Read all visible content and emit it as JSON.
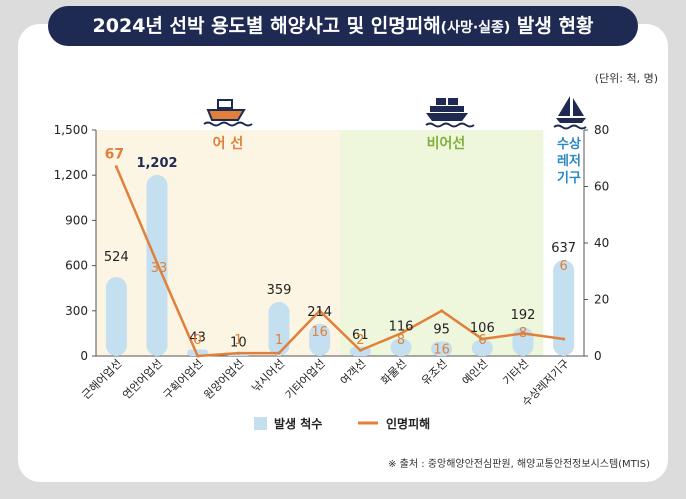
{
  "title": {
    "main_before": "2024년 선박 용도별 해양사고 및 인명피해",
    "main_paren": "(사망·실종)",
    "main_after": " 발생 현황"
  },
  "unit_label": "(단위: 척, 명)",
  "source_label": "※ 출처 : 중앙해양안전심판원, 해양교통안전정보시스템(MTIS)",
  "groups": {
    "fishing": "어 선",
    "nonfishing": "비어선",
    "leisure": [
      "수상",
      "레저",
      "기구"
    ]
  },
  "legend": {
    "bars": "발생 척수",
    "line": "인명피해"
  },
  "colors": {
    "bar": "#c4dff0",
    "line": "#e0803a",
    "title_bg": "#1f2a52",
    "nonfishing_band": "#eef6dc",
    "fishing_band": "#fdf5e3",
    "fishing_text": "#e0803a",
    "nonfishing_text": "#7fb13c",
    "leisure_text": "#2a88c2"
  },
  "icons": {
    "fishing": "fishing-boat-icon",
    "nonfishing": "cargo-ship-icon",
    "leisure": "sailboat-icon"
  },
  "chart_data": {
    "type": "bar",
    "categories": [
      "근해어업선",
      "연안어업선",
      "구획어업선",
      "원양어업선",
      "낚시어선",
      "기타어업선",
      "여객선",
      "화물선",
      "유조선",
      "예인선",
      "기타선",
      "수상레저기구"
    ],
    "series": [
      {
        "name": "발생 척수",
        "type": "bar",
        "axis": "left",
        "values": [
          524,
          1202,
          43,
          10,
          359,
          214,
          61,
          116,
          95,
          106,
          192,
          637
        ]
      },
      {
        "name": "인명피해",
        "type": "line",
        "axis": "right",
        "values": [
          67,
          33,
          0,
          1,
          1,
          16,
          2,
          8,
          16,
          6,
          8,
          6
        ]
      }
    ],
    "y_left": {
      "ticks": [
        "0",
        "300",
        "600",
        "900",
        "1,200",
        "1,500"
      ],
      "ylim": [
        0,
        1500
      ]
    },
    "y_right": {
      "ticks": [
        "0",
        "20",
        "40",
        "60",
        "80"
      ],
      "ylim": [
        0,
        80
      ]
    },
    "legend_position": "bottom"
  }
}
